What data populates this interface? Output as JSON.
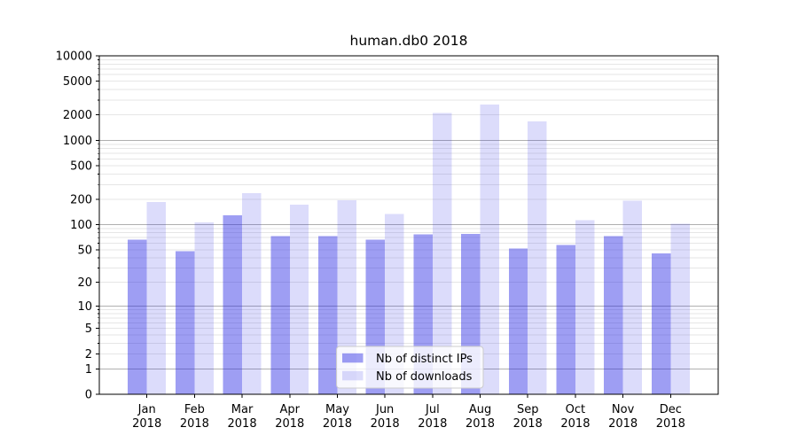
{
  "chart_data": {
    "type": "bar",
    "title": "human.db0 2018",
    "categories": [
      "Jan 2018",
      "Feb 2018",
      "Mar 2018",
      "Apr 2018",
      "May 2018",
      "Jun 2018",
      "Jul 2018",
      "Aug 2018",
      "Sep 2018",
      "Oct 2018",
      "Nov 2018",
      "Dec 2018"
    ],
    "series": [
      {
        "name": "Nb of distinct IPs",
        "color": "rgba(40,40,228,0.45)",
        "solid_color": "#9e9ef1",
        "values": [
          66,
          48,
          129,
          73,
          73,
          66,
          77,
          78,
          52,
          57,
          73,
          45
        ]
      },
      {
        "name": "Nb of downloads",
        "color": "rgba(40,40,228,0.16)",
        "solid_color": "#dcdcfa",
        "values": [
          187,
          106,
          237,
          173,
          195,
          134,
          2100,
          2640,
          1680,
          113,
          193,
          103
        ]
      }
    ],
    "yscale": "log1p",
    "ylim": [
      0,
      10000
    ],
    "y_ticks": [
      0,
      1,
      2,
      5,
      10,
      20,
      50,
      100,
      200,
      500,
      1000,
      2000,
      5000,
      10000
    ],
    "xlabel": "",
    "ylabel": "",
    "grid": true,
    "legend_position": "lower center",
    "colors": {
      "major_grid": "#b0b0b0",
      "minor_grid": "#e6e6e6",
      "axis": "#000000",
      "text": "#000000",
      "legend_border": "#cccccc",
      "background": "#ffffff"
    }
  }
}
